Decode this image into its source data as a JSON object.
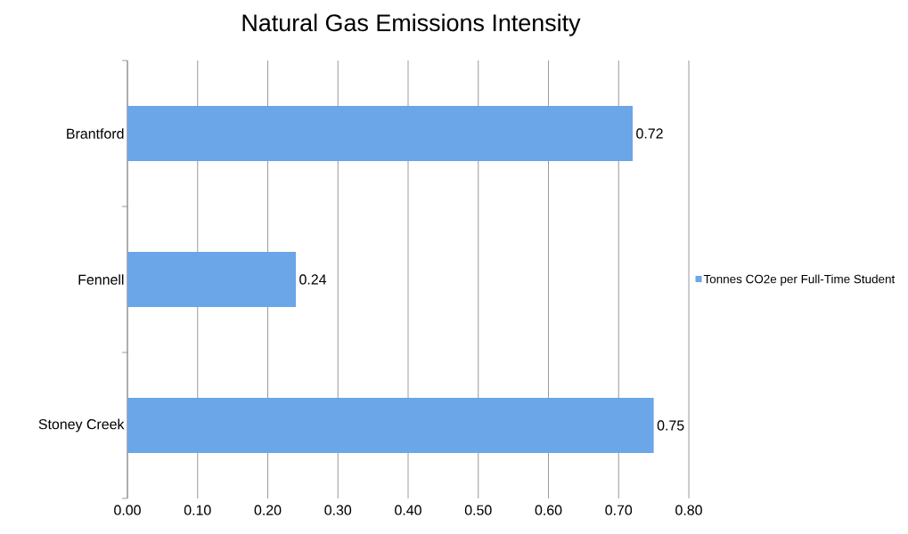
{
  "chart_data": {
    "type": "bar",
    "orientation": "horizontal",
    "title": "Natural Gas Emissions Intensity",
    "categories": [
      "Brantford",
      "Fennell",
      "Stoney Creek"
    ],
    "series": [
      {
        "name": "Tonnes CO2e per Full-Time Student",
        "color": "#6aa6e8",
        "values": [
          0.72,
          0.24,
          0.75
        ]
      }
    ],
    "xlim": [
      0,
      0.8
    ],
    "xticks": [
      {
        "value": 0,
        "label": "0.00"
      },
      {
        "value": 0.1,
        "label": "0.10"
      },
      {
        "value": 0.2,
        "label": "0.20"
      },
      {
        "value": 0.3,
        "label": "0.30"
      },
      {
        "value": 0.4,
        "label": "0.40"
      },
      {
        "value": 0.5,
        "label": "0.50"
      },
      {
        "value": 0.6,
        "label": "0.60"
      },
      {
        "value": 0.7,
        "label": "0.70"
      },
      {
        "value": 0.8,
        "label": "0.80"
      }
    ],
    "grid": "x",
    "legend": "right",
    "data_labels": true
  }
}
